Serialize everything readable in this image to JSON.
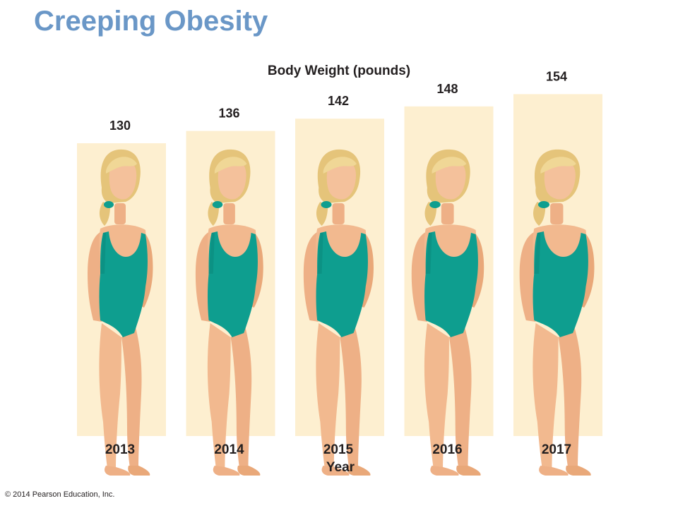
{
  "title": "Creeping Obesity",
  "copyright": "© 2014 Pearson Education, Inc.",
  "colors": {
    "title": "#6a97c7",
    "bar": "#fdefd0",
    "swimsuit": "#0e9e8f",
    "skin": "#f2b98f",
    "hair": "#e9cd86"
  },
  "icons": [
    "woman-figure-icon"
  ],
  "chart_data": {
    "type": "bar",
    "title": "Body Weight (pounds)",
    "xlabel": "Year",
    "ylabel": "",
    "categories": [
      "2013",
      "2014",
      "2015",
      "2016",
      "2017"
    ],
    "values": [
      130,
      136,
      142,
      148,
      154
    ],
    "value_labels": [
      "130",
      "136",
      "142",
      "148",
      "154"
    ],
    "grid": false,
    "legend": "none"
  }
}
